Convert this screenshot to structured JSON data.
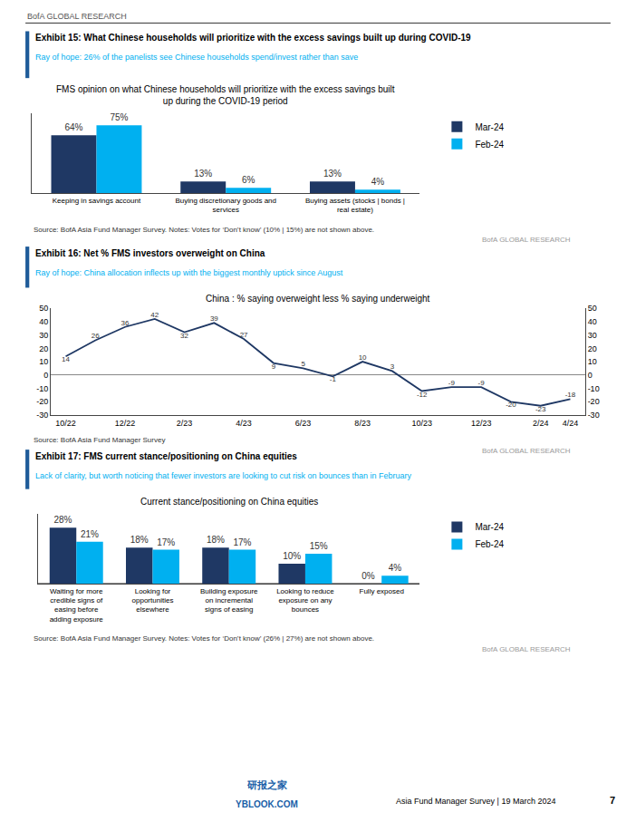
{
  "annotations": [
    "BofA GLOBAL RESEARCH",
    "研报之家",
    "YBLOOK.COM",
    "Asia Fund Manager Survey | 19 March 2024",
    "7"
  ],
  "chart_data": [
    {
      "type": "bar",
      "title": "Exhibit 15: What Chinese households will prioritize with the excess savings built up during COVID-19",
      "subtitle": "Ray of hope: 26% of the panelists see Chinese households spend/invest rather than save",
      "annotations": [
        "FMS opinion on what Chinese households will prioritize with the excess savings built\nup during the COVID-19 period",
        "Source: BofA Asia Fund Manager Survey. Notes: Votes for ‘Don’t know’ (10% | 15%) are not shown above.",
        "BofA GLOBAL RESEARCH"
      ],
      "categories": [
        "Keeping in savings account",
        "Buying discretionary goods and\nservices",
        "Buying assets (stocks | bonds |\nreal estate)"
      ],
      "series": [
        {
          "name": "Mar-24",
          "color": "#1F3864",
          "values": [
            64,
            13,
            13
          ],
          "value_labels": [
            "64%",
            "13%",
            "13%"
          ]
        },
        {
          "name": "Feb-24",
          "color": "#00B0F0",
          "values": [
            75,
            6,
            4
          ],
          "value_labels": [
            "75%",
            "6%",
            "4%"
          ]
        }
      ],
      "ylim": [
        0,
        88
      ],
      "data_labels": true,
      "tick_labels": "x",
      "grid": false,
      "legend": "right"
    },
    {
      "type": "line",
      "title": "Exhibit 16: Net % FMS investors overweight on China",
      "subtitle": "Ray of hope: China allocation inflects up with the biggest monthly uptick since August",
      "annotations": [
        "China : % saying overweight less % saying underweight",
        "Source: BofA Asia Fund Manager Survey",
        "BofA GLOBAL RESEARCH"
      ],
      "categories": [
        "10/22",
        null,
        "12/22",
        null,
        "2/23",
        null,
        "4/23",
        null,
        "6/23",
        null,
        "8/23",
        null,
        "10/23",
        null,
        "12/23",
        null,
        "2/24",
        "4/24"
      ],
      "series": [
        {
          "color": "#1F3864",
          "values": [
            14,
            26,
            36,
            42,
            32,
            39,
            27,
            9,
            5,
            -1,
            10,
            3,
            -12,
            -9,
            -9,
            -20,
            -23,
            -18
          ]
        }
      ],
      "ylim": [
        -30,
        50
      ],
      "yticks": [
        -30,
        -20,
        -10,
        0,
        10,
        20,
        30,
        40,
        50
      ],
      "y2lim": [
        -30,
        50
      ],
      "y2ticks": [
        -30,
        -20,
        -10,
        0,
        10,
        20,
        30,
        40,
        50
      ],
      "data_labels": true,
      "grid": false
    },
    {
      "type": "bar",
      "title": "Exhibit 17: FMS current stance/positioning on China equities",
      "subtitle": "Lack of clarity, but worth noticing that fewer investors are looking to cut risk on bounces than in February",
      "annotations": [
        "Current stance/positioning on China equities",
        "Source: BofA Asia Fund Manager Survey. Notes: Votes for ‘Don’t know’ (26% | 27%) are not shown above.",
        "BofA GLOBAL RESEARCH"
      ],
      "categories": [
        "Waiting for more\ncredible signs of\neasing before\nadding exposure",
        "Looking for\nopportunities\nelsewhere",
        "Building exposure\non incremental\nsigns of easing",
        "Looking to reduce\nexposure on any\nbounces",
        "Fully exposed"
      ],
      "series": [
        {
          "name": "Mar-24",
          "color": "#1F3864",
          "values": [
            28,
            18,
            18,
            10,
            0
          ],
          "value_labels": [
            "28%",
            "18%",
            "18%",
            "10%",
            "0%"
          ]
        },
        {
          "name": "Feb-24",
          "color": "#00B0F0",
          "values": [
            21,
            17,
            17,
            15,
            4
          ],
          "value_labels": [
            "21%",
            "17%",
            "17%",
            "15%",
            "4%"
          ]
        }
      ],
      "ylim": [
        0,
        35
      ],
      "data_labels": true,
      "tick_labels": "x",
      "grid": false,
      "legend": "right"
    }
  ]
}
